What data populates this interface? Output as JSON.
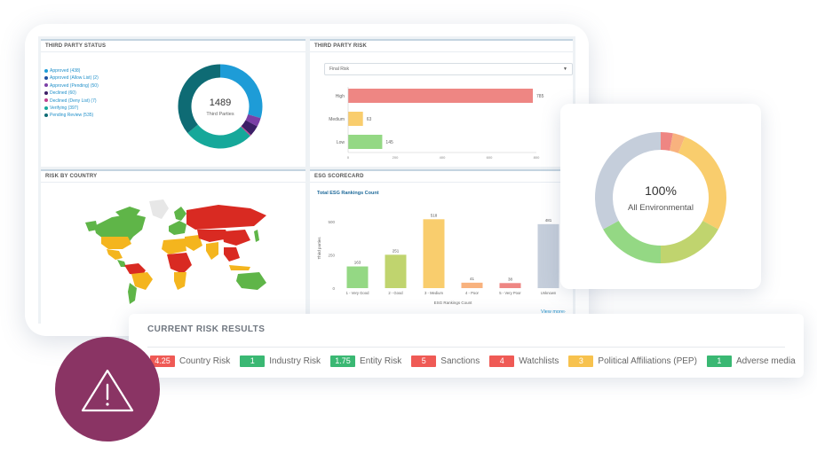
{
  "third_party_status": {
    "title": "THIRD PARTY STATUS",
    "total": "1489",
    "total_label": "Third Parties",
    "legend": [
      {
        "label": "Approved (438)",
        "color": "#1e9cd7"
      },
      {
        "label": "Approved (Allow List) (2)",
        "color": "#1f4fa0"
      },
      {
        "label": "Approved (Pending) (50)",
        "color": "#7b3fa6"
      },
      {
        "label": "Declined (60)",
        "color": "#3c1f66"
      },
      {
        "label": "Declined (Deny List) (7)",
        "color": "#c0418e"
      },
      {
        "label": "Verifying (397)",
        "color": "#16a89a"
      },
      {
        "label": "Pending Review (535)",
        "color": "#0e6b74"
      }
    ]
  },
  "third_party_risk": {
    "title": "THIRD PARTY RISK",
    "select_value": "Final Risk",
    "chart_data": {
      "type": "bar",
      "orientation": "horizontal",
      "categories": [
        "High",
        "Medium",
        "Low"
      ],
      "values": [
        785,
        63,
        145
      ],
      "colors": [
        "#ee8683",
        "#f9cd6d",
        "#94d884"
      ],
      "xticks": [
        "0",
        "200",
        "400",
        "600",
        "800"
      ],
      "xlim": [
        0,
        800
      ]
    }
  },
  "risk_by_country": {
    "title": "RISK BY COUNTRY"
  },
  "esg_scorecard": {
    "title": "ESG SCORECARD",
    "chart_title": "Total ESG Rankings Count",
    "view_more": "View more",
    "chart_data": {
      "type": "bar",
      "categories": [
        "1 - Very Good",
        "2 - Good",
        "3 - Medium",
        "4 - Poor",
        "5 - Very Poor",
        "Unknown"
      ],
      "values": [
        163,
        251,
        518,
        41,
        38,
        481
      ],
      "colors": [
        "#94d884",
        "#c0d46e",
        "#f9cd6d",
        "#f8b27e",
        "#ee8683",
        "#c5cedb"
      ],
      "xlabel": "ESG Rankings Count",
      "ylabel": "Third parties",
      "yticks": [
        "0",
        "250",
        "500"
      ],
      "ylim": [
        0,
        600
      ]
    }
  },
  "environmental": {
    "percent": "100%",
    "label": "All Environmental",
    "chart_data": {
      "type": "pie",
      "values": [
        3,
        3,
        27,
        17,
        17,
        33
      ],
      "colors": [
        "#ee8683",
        "#f8b27e",
        "#f9cd6d",
        "#c0d46e",
        "#94d884",
        "#c5cedb"
      ]
    }
  },
  "current_risk": {
    "title": "CURRENT RISK RESULTS",
    "items": [
      {
        "value": "4.25",
        "label": "Country Risk",
        "color": "#ef5a55"
      },
      {
        "value": "1",
        "label": "Industry Risk",
        "color": "#3ab873"
      },
      {
        "value": "1.75",
        "label": "Entity Risk",
        "color": "#3ab873"
      },
      {
        "value": "5",
        "label": "Sanctions",
        "color": "#ef5a55"
      },
      {
        "value": "4",
        "label": "Watchlists",
        "color": "#ef5a55"
      },
      {
        "value": "3",
        "label": "Political Affiliations (PEP)",
        "color": "#f7c24e"
      },
      {
        "value": "1",
        "label": "Adverse media",
        "color": "#3ab873"
      }
    ]
  },
  "alert": {
    "icon": "warning-icon",
    "color": "#8a3464"
  }
}
